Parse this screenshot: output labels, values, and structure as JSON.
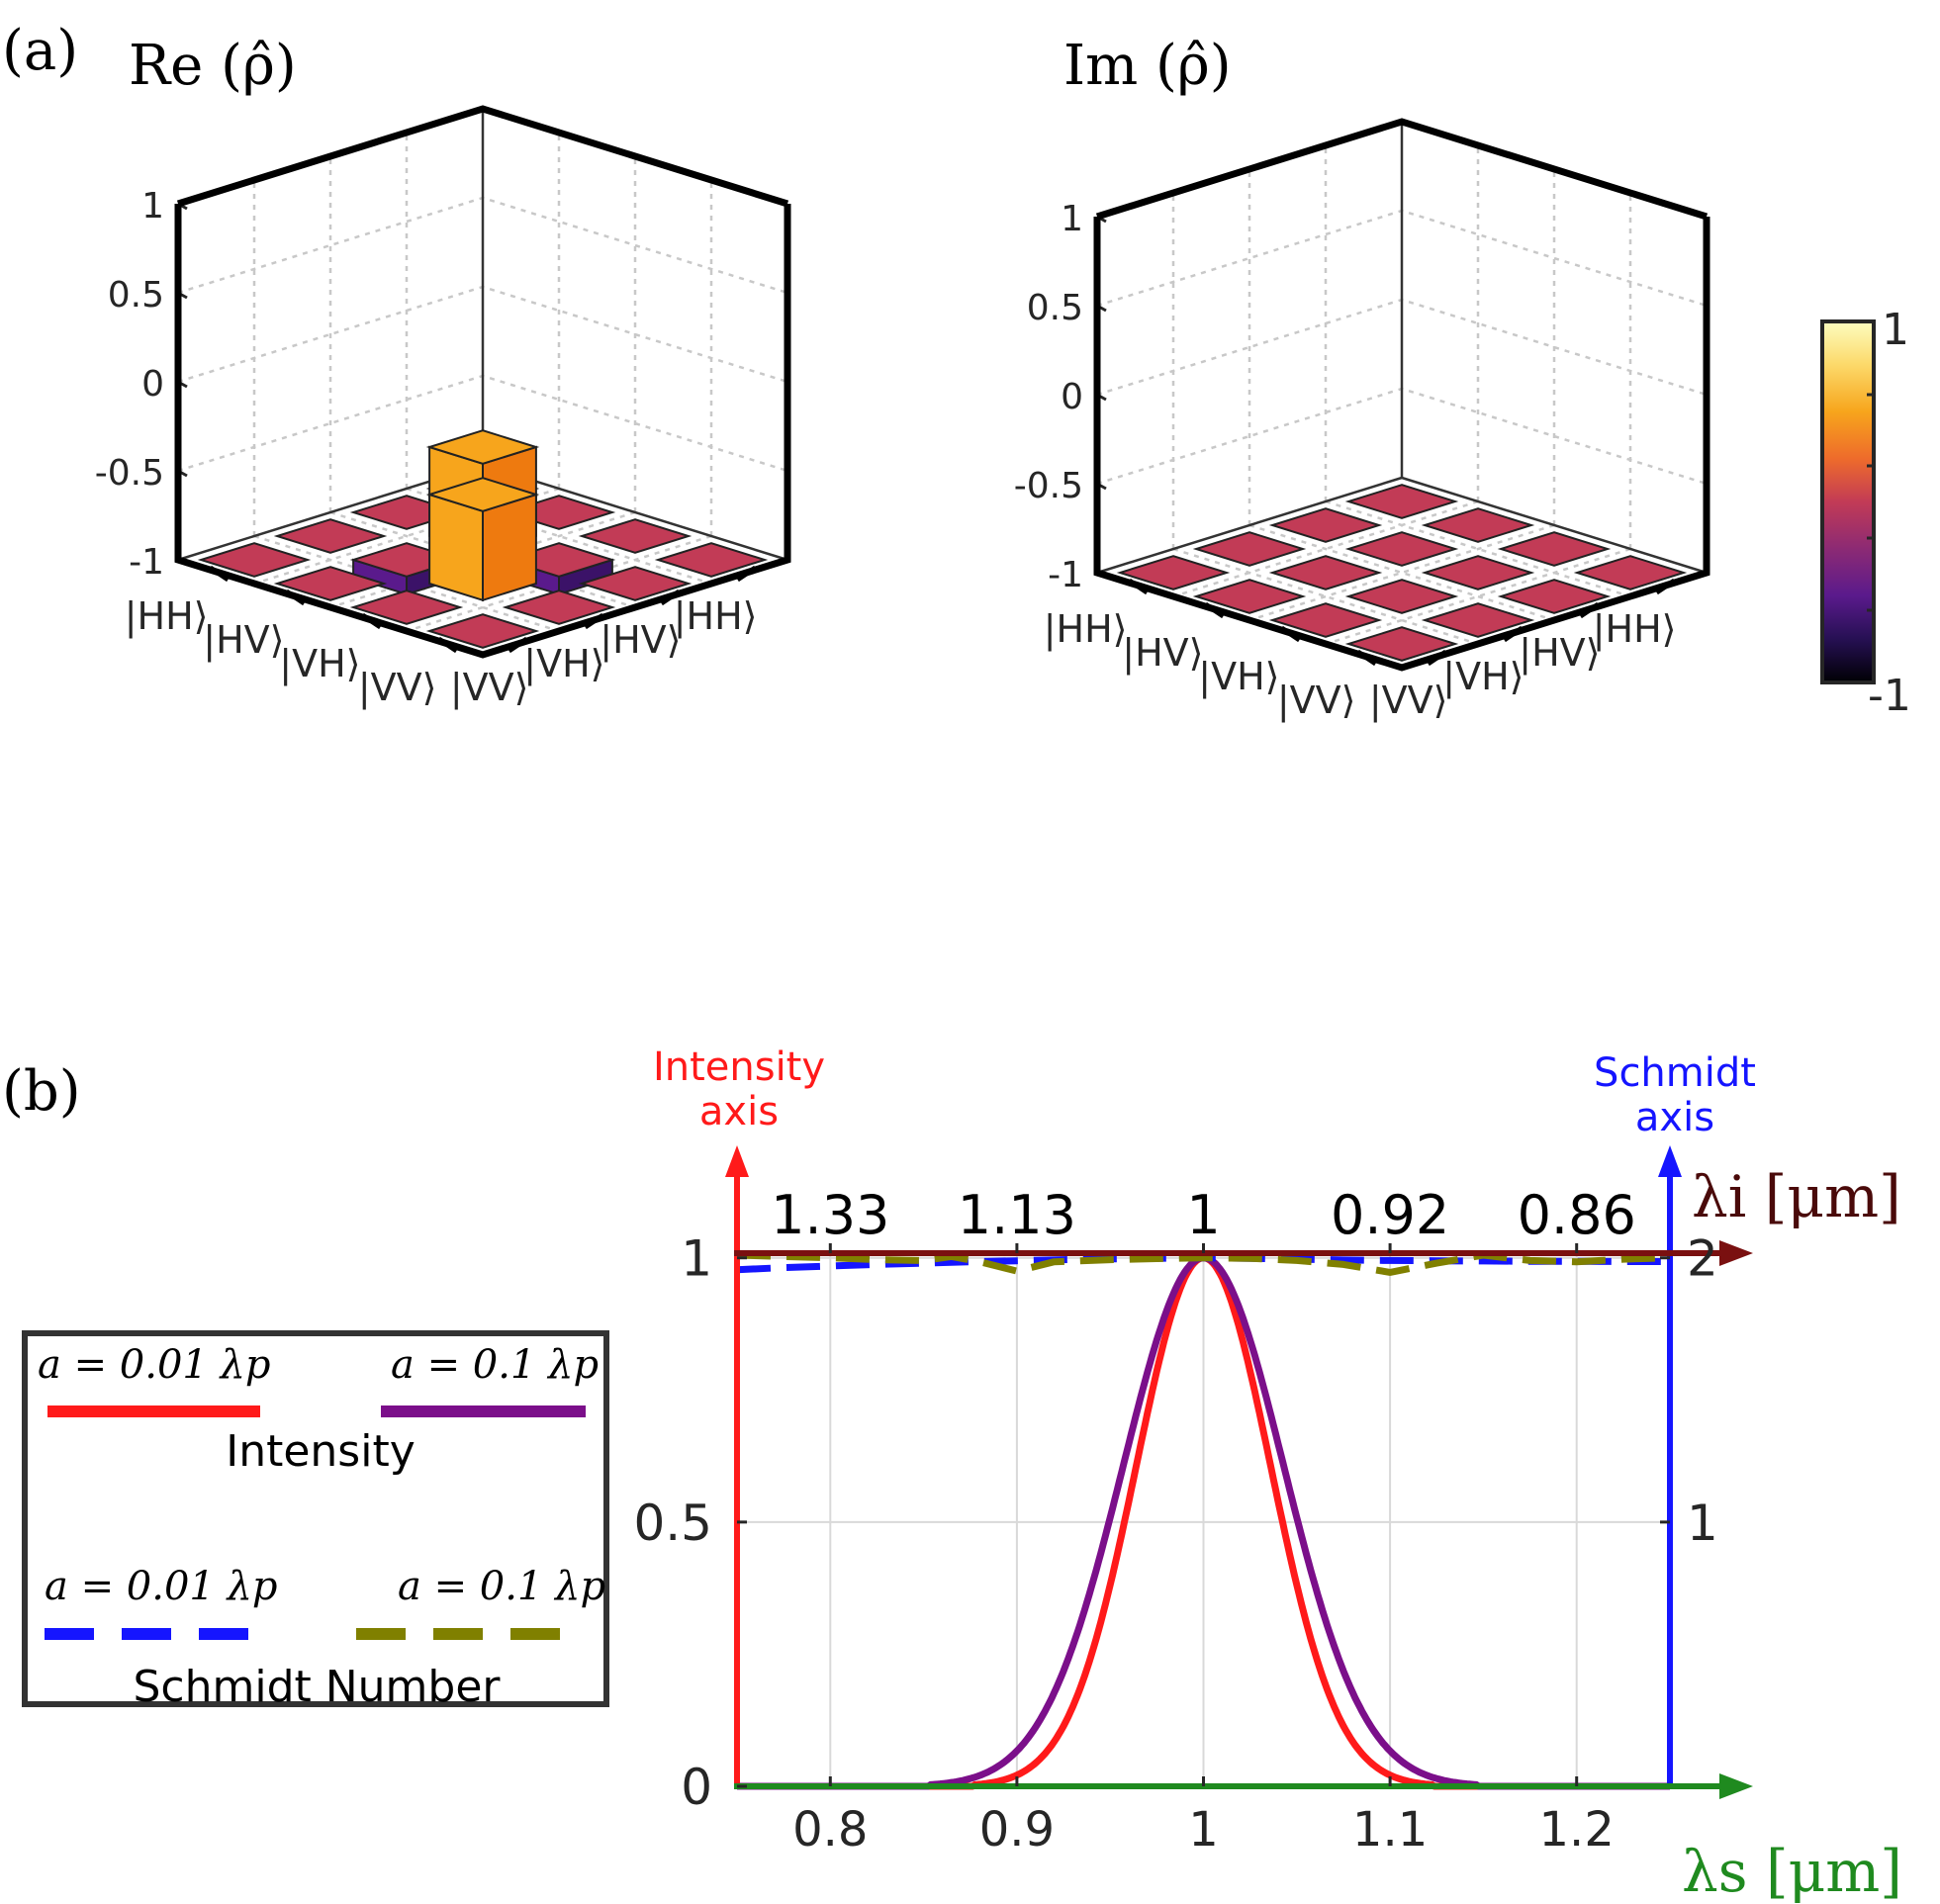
{
  "panel_a": {
    "label": "(a)",
    "basis": [
      "|HH⟩",
      "|HV⟩",
      "|VH⟩",
      "|VV⟩"
    ],
    "z_ticks": [
      "1",
      "0.5",
      "0",
      "-0.5",
      "-1"
    ],
    "colorbar": {
      "max_label": "1",
      "min_label": "-1"
    },
    "colors": {
      "pos_high": "#f7a51c",
      "pos_mid": "#ee7a0f",
      "zero": "#c23b56",
      "neg": "#5a1a8c",
      "neg_dark": "#3b1268"
    }
  },
  "panel_b": {
    "label": "(b)",
    "legend": {
      "label_001": "a = 0.01 λp",
      "label_01": "a = 0.1 λp",
      "intensity_title": "Intensity",
      "schmidt_title": "Schmidt Number"
    },
    "axis_titles": {
      "intensity_line1": "Intensity",
      "intensity_line2": "axis",
      "schmidt_line1": "Schmidt",
      "schmidt_line2": "axis",
      "lambda_i": "λi [μm]",
      "lambda_s": "λs [μm]"
    },
    "top_ticks": [
      "1.33",
      "1.13",
      "1",
      "0.92",
      "0.86"
    ],
    "left_ticks": [
      "0",
      "0.5",
      "1"
    ],
    "right_ticks": [
      "1",
      "2"
    ],
    "bottom_ticks": [
      "0.8",
      "0.9",
      "1",
      "1.1",
      "1.2"
    ],
    "colors": {
      "intensity_axis": "#ff1a1a",
      "schmidt_axis": "#1515ff",
      "lambda_i_axis": "#7a1010",
      "lambda_s_axis": "#1f8a1f",
      "int_001": "#ff1a1a",
      "int_01": "#7b0f8a",
      "sch_001": "#1515ff",
      "sch_01": "#808000"
    }
  },
  "chart_data": [
    {
      "type": "bar3d",
      "title": "Re (ρ̂)",
      "rows": [
        "|HH⟩",
        "|HV⟩",
        "|VH⟩",
        "|VV⟩"
      ],
      "cols": [
        "|HH⟩",
        "|HV⟩",
        "|VH⟩",
        "|VV⟩"
      ],
      "values": [
        [
          0,
          0,
          0,
          0
        ],
        [
          0,
          0.5,
          -0.1,
          0
        ],
        [
          0,
          -0.1,
          0.5,
          0
        ],
        [
          0,
          0,
          0,
          0
        ]
      ],
      "zlim": [
        -1,
        1
      ],
      "zticks": [
        -1,
        -0.5,
        0,
        0.5,
        1
      ]
    },
    {
      "type": "bar3d",
      "title": "Im (ρ̂)",
      "rows": [
        "|HH⟩",
        "|HV⟩",
        "|VH⟩",
        "|VV⟩"
      ],
      "cols": [
        "|HH⟩",
        "|HV⟩",
        "|VH⟩",
        "|VV⟩"
      ],
      "values": [
        [
          0,
          0,
          0,
          0
        ],
        [
          0,
          0,
          0,
          0
        ],
        [
          0,
          0,
          0,
          0
        ],
        [
          0,
          0,
          0,
          0
        ]
      ],
      "zlim": [
        -1,
        1
      ],
      "zticks": [
        -1,
        -0.5,
        0,
        0.5,
        1
      ]
    },
    {
      "type": "line",
      "xlabel": "λs [μm]",
      "x2label": "λi [μm]",
      "ylabel": "Intensity axis",
      "y2label": "Schmidt axis",
      "xlim": [
        0.75,
        1.25
      ],
      "ylim": [
        0,
        1.05
      ],
      "y2lim": [
        0,
        2.1
      ],
      "xticks": [
        0.8,
        0.9,
        1,
        1.1,
        1.2
      ],
      "x2ticks": [
        "1.33",
        "1.13",
        "1",
        "0.92",
        "0.86"
      ],
      "yticks": [
        0,
        0.5,
        1
      ],
      "y2ticks": [
        1,
        2
      ],
      "series": [
        {
          "name": "Intensity a=0.01λp",
          "axis": "left",
          "style": "solid",
          "color": "#ff1a1a",
          "model": "gauss",
          "center": 1.0,
          "sigma": 0.036,
          "amp": 1.0,
          "threshold": 0.003
        },
        {
          "name": "Intensity a=0.1λp",
          "axis": "left",
          "style": "solid",
          "color": "#7b0f8a",
          "model": "gauss",
          "center": 1.0,
          "sigma": 0.043,
          "amp": 1.0,
          "threshold": 0.003
        },
        {
          "name": "Schmidt a=0.01λp",
          "axis": "right",
          "style": "dashed",
          "color": "#1515ff",
          "x": [
            0.75,
            0.775,
            0.8,
            0.825,
            0.85,
            0.875,
            0.9,
            0.925,
            0.95,
            0.975,
            1.0,
            1.025,
            1.05,
            1.075,
            1.1,
            1.125,
            1.15,
            1.175,
            1.2,
            1.225,
            1.25
          ],
          "values": [
            1.955,
            1.963,
            1.969,
            1.975,
            1.98,
            1.985,
            1.989,
            1.993,
            1.996,
            1.998,
            2.0,
            1.998,
            1.995,
            1.992,
            1.99,
            1.989,
            1.988,
            1.987,
            1.987,
            1.986,
            1.986
          ]
        },
        {
          "name": "Schmidt a=0.1λp",
          "axis": "right",
          "style": "dashed",
          "color": "#808000",
          "x": [
            0.75,
            0.775,
            0.8,
            0.825,
            0.85,
            0.865,
            0.88,
            0.9,
            0.92,
            0.95,
            0.975,
            1.0,
            1.025,
            1.05,
            1.075,
            1.1,
            1.125,
            1.15,
            1.175,
            1.2,
            1.225,
            1.25
          ],
          "values": [
            2.01,
            2.005,
            2.0,
            1.993,
            1.99,
            2.005,
            1.985,
            1.95,
            1.985,
            1.993,
            1.997,
            2.0,
            1.998,
            1.99,
            1.975,
            1.945,
            1.98,
            2.01,
            1.99,
            1.985,
            1.995,
            2.0
          ]
        }
      ]
    }
  ]
}
